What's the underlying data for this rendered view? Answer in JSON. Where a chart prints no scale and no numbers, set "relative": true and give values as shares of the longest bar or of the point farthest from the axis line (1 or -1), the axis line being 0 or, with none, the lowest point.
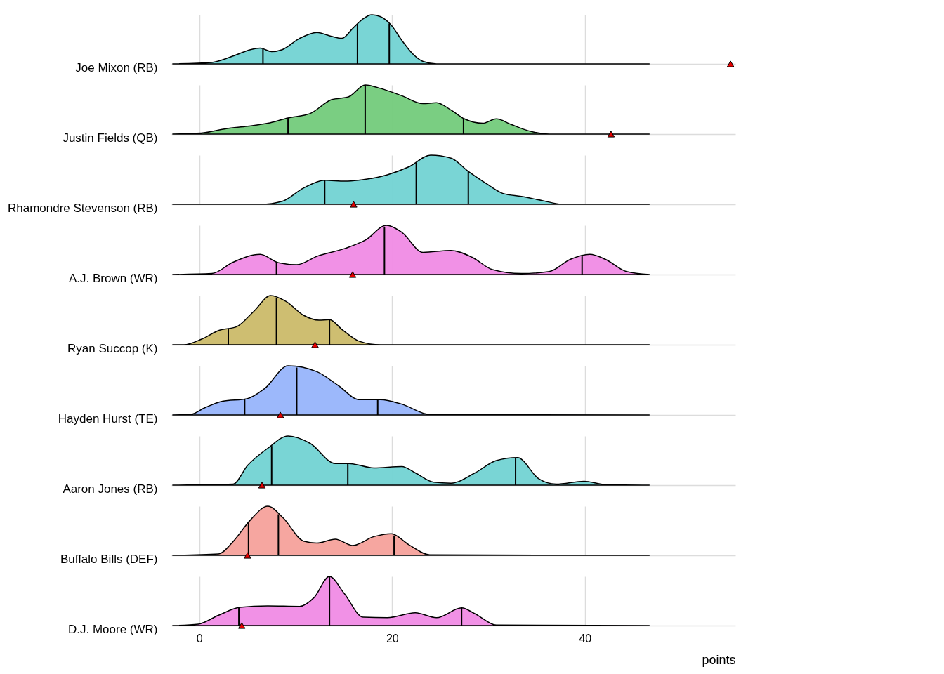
{
  "chart_data": [
    {
      "type": "area",
      "ylabel": "Joe Mixon (RB)",
      "relative": true,
      "xlim": [
        -2.9,
        55.6
      ],
      "xticks": [
        0,
        20,
        40
      ],
      "tick_labels": false,
      "grid": true,
      "x": [
        -2.8,
        1.3,
        3.5,
        5.3,
        6.3,
        7.5,
        8.6,
        10.4,
        12.2,
        13.7,
        14.8,
        15.9,
        17.0,
        17.9,
        18.8,
        19.9,
        21.0,
        22.1,
        23.2,
        24.6,
        46.7
      ],
      "series": [
        {
          "color": "#72d3d3",
          "values": [
            0,
            0.03,
            0.16,
            0.29,
            0.32,
            0.25,
            0.29,
            0.52,
            0.64,
            0.56,
            0.52,
            0.72,
            0.92,
            1,
            0.96,
            0.79,
            0.48,
            0.21,
            0.05,
            0,
            0
          ]
        },
        {
          "type": "scatter",
          "marker": "triangle",
          "color": "#e50000",
          "x": [
            55.1
          ],
          "values": [
            0
          ]
        }
      ],
      "ref_lines": [
        {
          "axis": "x",
          "value": 6.6
        },
        {
          "axis": "x",
          "value": 16.4
        },
        {
          "axis": "x",
          "value": 19.7
        }
      ]
    },
    {
      "type": "area",
      "ylabel": "Justin Fields (QB)",
      "relative": true,
      "xlim": [
        -2.9,
        55.6
      ],
      "xticks": [
        0,
        20,
        40
      ],
      "tick_labels": false,
      "grid": true,
      "x": [
        -2.8,
        0.2,
        2.8,
        5.0,
        7.1,
        9.2,
        11.5,
        13.7,
        15.5,
        17.2,
        18.8,
        21.0,
        23.2,
        24.6,
        26.1,
        27.5,
        29.4,
        30.8,
        32.3,
        34.1,
        36.3,
        46.7
      ],
      "series": [
        {
          "color": "#73cb7b",
          "values": [
            0,
            0.02,
            0.11,
            0.16,
            0.22,
            0.33,
            0.42,
            0.7,
            0.76,
            1,
            0.93,
            0.78,
            0.62,
            0.64,
            0.49,
            0.31,
            0.22,
            0.31,
            0.2,
            0.07,
            0,
            0
          ]
        },
        {
          "type": "scatter",
          "marker": "triangle",
          "color": "#e50000",
          "x": [
            42.7
          ],
          "values": [
            0
          ]
        }
      ],
      "ref_lines": [
        {
          "axis": "x",
          "value": 9.2
        },
        {
          "axis": "x",
          "value": 17.2
        },
        {
          "axis": "x",
          "value": 27.4
        }
      ]
    },
    {
      "type": "area",
      "ylabel": "Rhamondre Stevenson (RB)",
      "relative": true,
      "xlim": [
        -2.9,
        55.6
      ],
      "xticks": [
        0,
        20,
        40
      ],
      "tick_labels": false,
      "grid": true,
      "x": [
        -2.8,
        6.4,
        8.6,
        10.8,
        13.0,
        15.1,
        17.3,
        19.5,
        21.7,
        24.0,
        26.1,
        27.9,
        29.7,
        31.5,
        33.4,
        35.5,
        37.7,
        46.7
      ],
      "series": [
        {
          "color": "#72d3d3",
          "values": [
            0,
            0,
            0.06,
            0.33,
            0.49,
            0.47,
            0.51,
            0.6,
            0.76,
            1,
            0.94,
            0.67,
            0.43,
            0.22,
            0.16,
            0.08,
            0,
            0
          ]
        },
        {
          "type": "scatter",
          "marker": "triangle",
          "color": "#e50000",
          "x": [
            16.0
          ],
          "values": [
            0
          ]
        }
      ],
      "ref_lines": [
        {
          "axis": "x",
          "value": 13.0
        },
        {
          "axis": "x",
          "value": 22.5
        },
        {
          "axis": "x",
          "value": 27.9
        }
      ]
    },
    {
      "type": "area",
      "ylabel": "A.J. Brown (WR)",
      "relative": true,
      "xlim": [
        -2.9,
        55.6
      ],
      "xticks": [
        0,
        20,
        40
      ],
      "tick_labels": false,
      "grid": true,
      "x": [
        -2.8,
        1.3,
        3.5,
        6.3,
        8.2,
        10.1,
        12.2,
        15.1,
        17.3,
        19.4,
        21.0,
        23.2,
        26.1,
        28.3,
        30.4,
        33.4,
        36.3,
        38.5,
        40.5,
        42.1,
        44.3,
        46.7
      ],
      "series": [
        {
          "color": "#f08be5",
          "values": [
            0,
            0.02,
            0.25,
            0.41,
            0.24,
            0.2,
            0.37,
            0.53,
            0.71,
            1,
            0.86,
            0.45,
            0.49,
            0.35,
            0.1,
            0.02,
            0.06,
            0.31,
            0.41,
            0.31,
            0.06,
            0
          ]
        },
        {
          "type": "scatter",
          "marker": "triangle",
          "color": "#e50000",
          "x": [
            15.9
          ],
          "values": [
            0
          ]
        }
      ],
      "ref_lines": [
        {
          "axis": "x",
          "value": 8.0
        },
        {
          "axis": "x",
          "value": 19.2
        },
        {
          "axis": "x",
          "value": 39.7
        }
      ]
    },
    {
      "type": "area",
      "ylabel": "Ryan Succop (K)",
      "relative": true,
      "xlim": [
        -2.9,
        55.6
      ],
      "xticks": [
        0,
        20,
        40
      ],
      "tick_labels": false,
      "grid": true,
      "x": [
        -2.8,
        -1.6,
        0.2,
        2.0,
        3.9,
        5.7,
        7.4,
        9.0,
        10.8,
        12.4,
        13.5,
        14.8,
        16.6,
        18.8,
        46.7
      ],
      "series": [
        {
          "color": "#cbbb69",
          "values": [
            0,
            0,
            0.11,
            0.29,
            0.37,
            0.69,
            1,
            0.88,
            0.6,
            0.5,
            0.51,
            0.31,
            0.07,
            0,
            0
          ]
        },
        {
          "type": "scatter",
          "marker": "triangle",
          "color": "#e50000",
          "x": [
            12.0
          ],
          "values": [
            0
          ]
        }
      ],
      "ref_lines": [
        {
          "axis": "x",
          "value": 3.0
        },
        {
          "axis": "x",
          "value": 8.0
        },
        {
          "axis": "x",
          "value": 13.5
        }
      ]
    },
    {
      "type": "area",
      "ylabel": "Hayden Hurst (TE)",
      "relative": true,
      "xlim": [
        -2.9,
        55.6
      ],
      "xticks": [
        0,
        20,
        40
      ],
      "tick_labels": false,
      "grid": true,
      "x": [
        -2.8,
        -0.9,
        0.6,
        2.4,
        4.95,
        6.8,
        9.2,
        12.2,
        14.4,
        16.6,
        18.8,
        21.0,
        23.9,
        46.7
      ],
      "series": [
        {
          "color": "#97b4fb",
          "values": [
            0,
            0.01,
            0.15,
            0.28,
            0.33,
            0.54,
            1,
            0.88,
            0.6,
            0.31,
            0.31,
            0.22,
            0.01,
            0
          ]
        },
        {
          "type": "scatter",
          "marker": "triangle",
          "color": "#e50000",
          "x": [
            8.4
          ],
          "values": [
            0
          ]
        }
      ],
      "ref_lines": [
        {
          "axis": "x",
          "value": 4.7
        },
        {
          "axis": "x",
          "value": 10.1
        },
        {
          "axis": "x",
          "value": 18.5
        }
      ]
    },
    {
      "type": "area",
      "ylabel": "Aaron Jones (RB)",
      "relative": true,
      "xlim": [
        -2.9,
        55.6
      ],
      "xticks": [
        0,
        20,
        40
      ],
      "tick_labels": false,
      "grid": true,
      "x": [
        -2.8,
        3.5,
        5.0,
        7.1,
        9.2,
        11.5,
        14.1,
        15.5,
        18.1,
        21.0,
        22.4,
        24.3,
        26.1,
        28.6,
        30.8,
        33.0,
        35.2,
        37.0,
        39.9,
        42.1,
        46.7
      ],
      "series": [
        {
          "color": "#72d3d3",
          "values": [
            0,
            0.02,
            0.4,
            0.75,
            1,
            0.85,
            0.44,
            0.44,
            0.35,
            0.38,
            0.25,
            0.06,
            0.04,
            0.25,
            0.5,
            0.56,
            0.13,
            0.02,
            0.08,
            0.01,
            0
          ]
        },
        {
          "type": "scatter",
          "marker": "triangle",
          "color": "#e50000",
          "x": [
            6.5
          ],
          "values": [
            0
          ]
        }
      ],
      "ref_lines": [
        {
          "axis": "x",
          "value": 7.5
        },
        {
          "axis": "x",
          "value": 15.4
        },
        {
          "axis": "x",
          "value": 32.8
        }
      ]
    },
    {
      "type": "area",
      "ylabel": "Buffalo Bills (DEF)",
      "relative": true,
      "xlim": [
        -2.9,
        55.6
      ],
      "xticks": [
        0,
        20,
        40
      ],
      "tick_labels": false,
      "grid": true,
      "x": [
        -2.8,
        2.0,
        3.5,
        5.3,
        7.1,
        8.7,
        10.8,
        12.2,
        14.1,
        15.9,
        18.1,
        19.9,
        21.7,
        23.9,
        46.7
      ],
      "series": [
        {
          "color": "#f5a19b",
          "values": [
            0,
            0.03,
            0.28,
            0.72,
            1,
            0.76,
            0.29,
            0.25,
            0.33,
            0.2,
            0.38,
            0.44,
            0.22,
            0.01,
            0
          ]
        },
        {
          "type": "scatter",
          "marker": "triangle",
          "color": "#e50000",
          "x": [
            5.0
          ],
          "values": [
            0
          ]
        }
      ],
      "ref_lines": [
        {
          "axis": "x",
          "value": 5.1
        },
        {
          "axis": "x",
          "value": 8.2
        },
        {
          "axis": "x",
          "value": 20.2
        }
      ]
    },
    {
      "type": "area",
      "ylabel": "D.J. Moore (WR)",
      "xlabel": "points",
      "relative": true,
      "xlim": [
        -2.9,
        55.6
      ],
      "xticks": [
        0,
        20,
        40
      ],
      "tick_labels": "x",
      "grid": true,
      "x": [
        -2.8,
        -0.1,
        2.0,
        4.2,
        7.1,
        10.4,
        11.9,
        13.5,
        15.0,
        17.0,
        19.5,
        22.4,
        24.6,
        27.2,
        28.6,
        30.8,
        46.7
      ],
      "series": [
        {
          "color": "#f08be5",
          "values": [
            0,
            0.03,
            0.21,
            0.37,
            0.4,
            0.39,
            0.57,
            1,
            0.66,
            0.17,
            0.16,
            0.26,
            0.16,
            0.36,
            0.24,
            0.01,
            0
          ]
        },
        {
          "type": "scatter",
          "marker": "triangle",
          "color": "#e50000",
          "x": [
            4.4
          ],
          "values": [
            0
          ]
        }
      ],
      "ref_lines": [
        {
          "axis": "x",
          "value": 4.1
        },
        {
          "axis": "x",
          "value": 13.5
        },
        {
          "axis": "x",
          "value": 27.2
        }
      ]
    }
  ]
}
